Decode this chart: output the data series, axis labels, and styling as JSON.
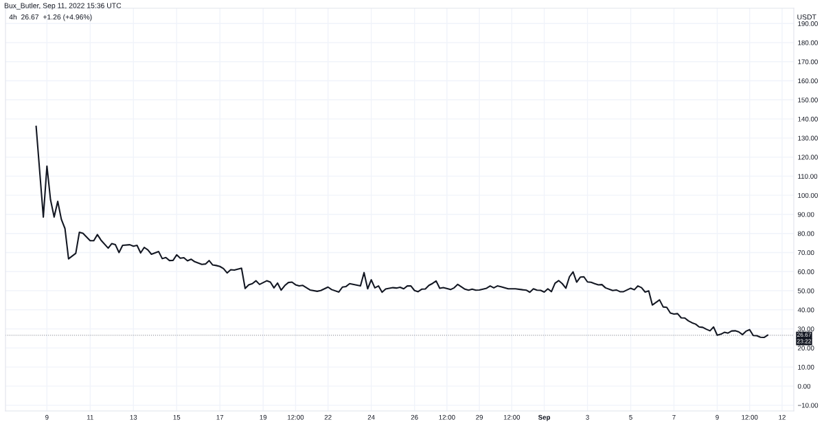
{
  "chart_data": {
    "type": "line",
    "title": "4h  26.67  +1.26 (+4.96%)",
    "ylabel": "USDT",
    "annotations": [
      "Bux_Butler, Sep 11, 2022 15:36 UTC",
      "23:22"
    ],
    "x": [
      "2022-08-08T12:00",
      "2022-08-08T20:00",
      "2022-08-09T00:00",
      "2022-08-09T04:00",
      "2022-08-09T08:00",
      "2022-08-09T12:00",
      "2022-08-09T16:00",
      "2022-08-09T20:00",
      "2022-08-10T00:00",
      "2022-08-10T08:00",
      "2022-08-10T12:00",
      "2022-08-10T16:00",
      "2022-08-11T00:00",
      "2022-08-11T04:00",
      "2022-08-11T08:00",
      "2022-08-11T12:00",
      "2022-08-11T20:00",
      "2022-08-12T00:00",
      "2022-08-12T04:00",
      "2022-08-12T08:00",
      "2022-08-12T12:00",
      "2022-08-12T20:00",
      "2022-08-13T00:00",
      "2022-08-13T04:00",
      "2022-08-13T08:00",
      "2022-08-13T12:00",
      "2022-08-13T16:00",
      "2022-08-13T20:00",
      "2022-08-14T04:00",
      "2022-08-14T08:00",
      "2022-08-14T12:00",
      "2022-08-14T16:00",
      "2022-08-14T20:00",
      "2022-08-15T00:00",
      "2022-08-15T04:00",
      "2022-08-15T08:00",
      "2022-08-15T12:00",
      "2022-08-15T16:00",
      "2022-08-15T20:00",
      "2022-08-16T04:00",
      "2022-08-16T08:00",
      "2022-08-16T12:00",
      "2022-08-16T16:00",
      "2022-08-16T20:00",
      "2022-08-17T00:00",
      "2022-08-17T04:00",
      "2022-08-17T08:00",
      "2022-08-17T12:00",
      "2022-08-17T16:00",
      "2022-08-18T00:00",
      "2022-08-18T04:00",
      "2022-08-18T08:00",
      "2022-08-18T12:00",
      "2022-08-18T16:00",
      "2022-08-18T20:00",
      "2022-08-19T04:00",
      "2022-08-19T08:00",
      "2022-08-19T12:00",
      "2022-08-19T16:00",
      "2022-08-19T20:00",
      "2022-08-20T00:00",
      "2022-08-20T04:00",
      "2022-08-20T08:00",
      "2022-08-20T12:00",
      "2022-08-20T16:00",
      "2022-08-20T20:00",
      "2022-08-21T04:00",
      "2022-08-21T12:00",
      "2022-08-21T16:00",
      "2022-08-22T00:00",
      "2022-08-22T04:00",
      "2022-08-22T12:00",
      "2022-08-22T16:00",
      "2022-08-22T20:00",
      "2022-08-23T00:00",
      "2022-08-23T12:00",
      "2022-08-23T16:00",
      "2022-08-23T20:00",
      "2022-08-24T00:00",
      "2022-08-24T04:00",
      "2022-08-24T08:00",
      "2022-08-24T12:00",
      "2022-08-24T16:00",
      "2022-08-25T00:00",
      "2022-08-25T04:00",
      "2022-08-25T08:00",
      "2022-08-25T12:00",
      "2022-08-25T16:00",
      "2022-08-25T20:00",
      "2022-08-26T00:00",
      "2022-08-26T04:00",
      "2022-08-26T08:00",
      "2022-08-26T12:00",
      "2022-08-26T16:00",
      "2022-08-26T20:00",
      "2022-08-27T00:00",
      "2022-08-27T04:00",
      "2022-08-27T08:00",
      "2022-08-27T16:00",
      "2022-08-27T20:00",
      "2022-08-28T00:00",
      "2022-08-28T08:00",
      "2022-08-28T12:00",
      "2022-08-28T16:00",
      "2022-08-28T20:00",
      "2022-08-29T00:00",
      "2022-08-29T08:00",
      "2022-08-29T12:00",
      "2022-08-29T16:00",
      "2022-08-29T20:00",
      "2022-08-30T00:00",
      "2022-08-30T08:00",
      "2022-08-30T16:00",
      "2022-08-31T00:00",
      "2022-08-31T04:00",
      "2022-08-31T08:00",
      "2022-08-31T12:00",
      "2022-08-31T16:00",
      "2022-08-31T20:00",
      "2022-09-01T00:00",
      "2022-09-01T04:00",
      "2022-09-01T08:00",
      "2022-09-01T12:00",
      "2022-09-01T16:00",
      "2022-09-01T20:00",
      "2022-09-02T00:00",
      "2022-09-02T04:00",
      "2022-09-02T08:00",
      "2022-09-02T12:00",
      "2022-09-02T16:00",
      "2022-09-02T20:00",
      "2022-09-03T00:00",
      "2022-09-03T04:00",
      "2022-09-03T08:00",
      "2022-09-03T12:00",
      "2022-09-03T16:00",
      "2022-09-03T20:00",
      "2022-09-04T04:00",
      "2022-09-04T08:00",
      "2022-09-04T12:00",
      "2022-09-04T16:00",
      "2022-09-05T00:00",
      "2022-09-05T04:00",
      "2022-09-05T08:00",
      "2022-09-05T12:00",
      "2022-09-05T16:00",
      "2022-09-05T20:00",
      "2022-09-06T00:00",
      "2022-09-06T08:00",
      "2022-09-06T12:00",
      "2022-09-06T16:00",
      "2022-09-06T20:00",
      "2022-09-07T00:00",
      "2022-09-07T04:00",
      "2022-09-07T08:00",
      "2022-09-07T12:00",
      "2022-09-07T16:00",
      "2022-09-07T20:00",
      "2022-09-08T00:00",
      "2022-09-08T04:00",
      "2022-09-08T08:00",
      "2022-09-08T12:00",
      "2022-09-08T16:00",
      "2022-09-08T20:00",
      "2022-09-09T00:00",
      "2022-09-09T04:00",
      "2022-09-09T08:00",
      "2022-09-09T12:00",
      "2022-09-09T16:00",
      "2022-09-09T20:00",
      "2022-09-10T00:00",
      "2022-09-10T04:00",
      "2022-09-10T08:00",
      "2022-09-10T12:00",
      "2022-09-10T16:00",
      "2022-09-10T20:00",
      "2022-09-11T00:00",
      "2022-09-11T04:00",
      "2022-09-11T08:00"
    ],
    "series": [
      {
        "color": "#131722",
        "values": [
          136.1,
          88.6,
          115.3,
          97.6,
          88.6,
          96.8,
          87.4,
          82.6,
          66.7,
          69.6,
          80.6,
          80.1,
          76.2,
          76.2,
          79.4,
          76.5,
          72.3,
          74.7,
          74.1,
          70.0,
          73.8,
          74.1,
          73.3,
          73.8,
          69.8,
          72.7,
          71.4,
          69.1,
          70.5,
          66.8,
          67.4,
          65.8,
          65.9,
          68.8,
          67.0,
          67.3,
          65.7,
          66.5,
          65.2,
          63.8,
          64.0,
          65.8,
          63.5,
          63.2,
          62.7,
          61.6,
          59.3,
          61.0,
          60.8,
          61.8,
          51.2,
          53.1,
          53.7,
          55.2,
          53.3,
          55.2,
          54.5,
          51.5,
          54.0,
          50.3,
          52.7,
          54.3,
          54.5,
          53.1,
          52.5,
          52.8,
          50.4,
          49.7,
          50.1,
          51.9,
          50.6,
          49.3,
          51.9,
          52.2,
          53.7,
          52.5,
          59.5,
          51.0,
          55.7,
          51.5,
          52.5,
          49.2,
          50.9,
          51.6,
          51.4,
          51.8,
          51.0,
          52.5,
          52.5,
          50.1,
          49.5,
          50.8,
          50.9,
          52.8,
          53.8,
          55.1,
          51.3,
          51.6,
          50.6,
          51.5,
          53.3,
          50.8,
          50.3,
          50.8,
          50.3,
          50.4,
          51.3,
          52.5,
          51.5,
          52.5,
          52.1,
          51.0,
          51.0,
          50.5,
          50.3,
          49.2,
          51.0,
          50.3,
          50.2,
          49.3,
          51.0,
          49.5,
          53.9,
          55.3,
          53.7,
          51.3,
          57.3,
          59.9,
          54.5,
          57.1,
          57.3,
          54.6,
          54.4,
          53.7,
          53.1,
          53.2,
          51.5,
          50.1,
          50.4,
          49.5,
          49.5,
          51.3,
          50.5,
          52.5,
          51.6,
          49.3,
          49.9,
          42.5,
          45.2,
          41.5,
          41.3,
          38.3,
          37.8,
          38.0,
          35.8,
          35.7,
          34.2,
          33.2,
          32.5,
          31.0,
          30.8,
          29.8,
          29.0,
          31.0,
          26.7,
          27.2,
          28.2,
          27.8,
          28.9,
          29.0,
          28.4,
          27.0,
          28.8,
          29.6,
          26.5,
          26.4,
          25.6,
          25.5,
          26.7
        ]
      }
    ],
    "xlim": [
      "2022-08-07T02:00",
      "2022-09-12T13:00"
    ],
    "xticks": [
      {
        "value": "2022-08-09",
        "label": "9"
      },
      {
        "value": "2022-08-11",
        "label": "11"
      },
      {
        "value": "2022-08-13",
        "label": "13"
      },
      {
        "value": "2022-08-15",
        "label": "15"
      },
      {
        "value": "2022-08-17",
        "label": "17"
      },
      {
        "value": "2022-08-19",
        "label": "19"
      },
      {
        "value": "2022-08-20T12:00",
        "label": "12:00"
      },
      {
        "value": "2022-08-22",
        "label": "22"
      },
      {
        "value": "2022-08-24",
        "label": "24"
      },
      {
        "value": "2022-08-26",
        "label": "26"
      },
      {
        "value": "2022-08-27T12:00",
        "label": "12:00"
      },
      {
        "value": "2022-08-29",
        "label": "29"
      },
      {
        "value": "2022-08-30T12:00",
        "label": "12:00"
      },
      {
        "value": "2022-09-01",
        "label": "Sep"
      },
      {
        "value": "2022-09-03",
        "label": "3"
      },
      {
        "value": "2022-09-05",
        "label": "5"
      },
      {
        "value": "2022-09-07",
        "label": "7"
      },
      {
        "value": "2022-09-09",
        "label": "9"
      },
      {
        "value": "2022-09-10T12:00",
        "label": "12:00"
      },
      {
        "value": "2022-09-12",
        "label": "12"
      }
    ],
    "ylim": [
      -13,
      198
    ],
    "yticks": [
      {
        "value": -10,
        "label": "−10.00"
      },
      {
        "value": 0,
        "label": "0.00"
      },
      {
        "value": 10,
        "label": "10.00"
      },
      {
        "value": 20,
        "label": "20.00"
      },
      {
        "value": 30,
        "label": "30.00"
      },
      {
        "value": 40,
        "label": "40.00"
      },
      {
        "value": 50,
        "label": "50.00"
      },
      {
        "value": 60,
        "label": "60.00"
      },
      {
        "value": 70,
        "label": "70.00"
      },
      {
        "value": 80,
        "label": "80.00"
      },
      {
        "value": 90,
        "label": "90.00"
      },
      {
        "value": 100,
        "label": "100.00"
      },
      {
        "value": 110,
        "label": "110.00"
      },
      {
        "value": 120,
        "label": "120.00"
      },
      {
        "value": 130,
        "label": "130.00"
      },
      {
        "value": 140,
        "label": "140.00"
      },
      {
        "value": 150,
        "label": "150.00"
      },
      {
        "value": 160,
        "label": "160.00"
      },
      {
        "value": 170,
        "label": "170.00"
      },
      {
        "value": 180,
        "label": "180.00"
      },
      {
        "value": 190,
        "label": "190.00"
      }
    ],
    "ref_lines": [
      {
        "axis": "y",
        "value": 26.67,
        "label": "26.67",
        "color": "#9598a1",
        "line_style": "dotted"
      }
    ],
    "grid": true,
    "line_style": "solid",
    "marker": "none"
  }
}
